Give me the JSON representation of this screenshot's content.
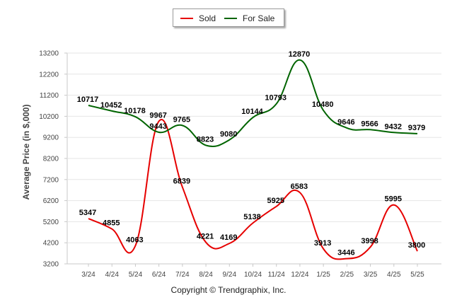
{
  "chart_data": {
    "type": "line",
    "categories": [
      "3/24",
      "4/24",
      "5/24",
      "6/24",
      "7/24",
      "8/24",
      "9/24",
      "10/24",
      "11/24",
      "12/24",
      "1/25",
      "2/25",
      "3/25",
      "4/25",
      "5/25"
    ],
    "series": [
      {
        "name": "Sold",
        "color": "#e60000",
        "values": [
          5347,
          4855,
          4063,
          9967,
          6839,
          4221,
          4169,
          5138,
          5925,
          6583,
          3913,
          3446,
          3998,
          5995,
          3800
        ]
      },
      {
        "name": "For Sale",
        "color": "#006400",
        "values": [
          10717,
          10452,
          10178,
          9443,
          9765,
          8823,
          9080,
          10144,
          10793,
          12870,
          10480,
          9646,
          9566,
          9432,
          9379
        ]
      }
    ],
    "ylabel": "Average Price (in $,000)",
    "xlabel": "",
    "ylim": [
      3200,
      13200
    ],
    "yticks": [
      3200,
      4200,
      5200,
      6200,
      7200,
      8200,
      9200,
      10200,
      11200,
      12200,
      13200
    ],
    "grid": true,
    "legend": "top-center"
  },
  "credit": "Copyright © Trendgraphix, Inc."
}
